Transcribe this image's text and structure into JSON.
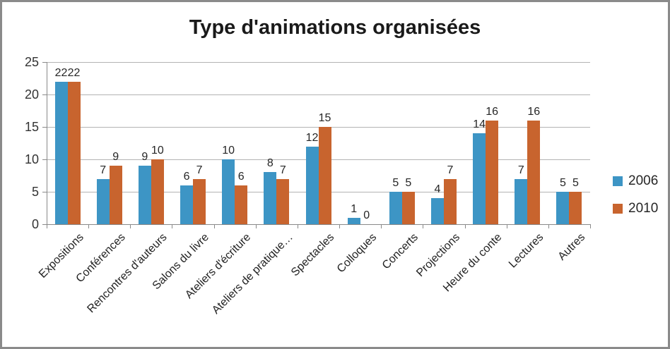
{
  "title": "Type d'animations organisées",
  "legend": {
    "items": [
      {
        "label": "2006"
      },
      {
        "label": "2010"
      }
    ]
  },
  "chart_data": {
    "type": "bar",
    "title": "Type d'animations organisées",
    "categories": [
      "Expositions",
      "Conférences",
      "Rencontres d'auteurs",
      "Salons du livre",
      "Ateliers d'écriture",
      "Ateliers de pratique…",
      "Spectacles",
      "Colloques",
      "Concerts",
      "Projections",
      "Heure du conte",
      "Lectures",
      "Autres"
    ],
    "series": [
      {
        "name": "2006",
        "color": "#3d95c5",
        "values": [
          22,
          7,
          9,
          6,
          10,
          8,
          12,
          1,
          5,
          4,
          14,
          7,
          5
        ]
      },
      {
        "name": "2010",
        "color": "#c8642e",
        "values": [
          22,
          9,
          10,
          7,
          6,
          7,
          15,
          0,
          5,
          7,
          16,
          16,
          5
        ]
      }
    ],
    "ylim": [
      0,
      25
    ],
    "yticks": [
      0,
      5,
      10,
      15,
      20,
      25
    ],
    "grid": true,
    "data_labels": true,
    "legend_position": "right",
    "colors": {
      "gridline": "#b3b3b3",
      "axis": "#898989",
      "label_text": "#262626",
      "frame_border": "#8a8a8a"
    }
  }
}
